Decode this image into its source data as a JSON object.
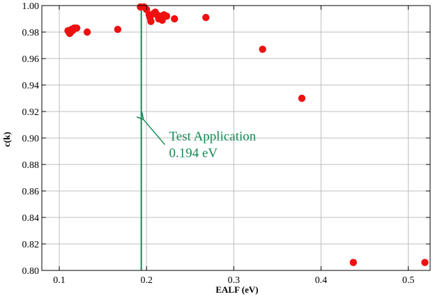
{
  "chart_data": {
    "type": "scatter",
    "title": "",
    "xlabel": "EALF (eV)",
    "ylabel": "c(k)",
    "xlim": [
      0.08,
      0.525
    ],
    "ylim": [
      0.8,
      1.0
    ],
    "x_ticks": [
      0.1,
      0.2,
      0.3,
      0.4,
      0.5
    ],
    "x_tick_labels": [
      "0.1",
      "0.2",
      "0.3",
      "0.4",
      "0.5"
    ],
    "y_ticks": [
      0.8,
      0.82,
      0.84,
      0.86,
      0.88,
      0.9,
      0.92,
      0.94,
      0.96,
      0.98,
      1.0
    ],
    "y_tick_labels": [
      "0.80",
      "0.82",
      "0.84",
      "0.86",
      "0.88",
      "0.90",
      "0.92",
      "0.94",
      "0.96",
      "0.98",
      "1.00"
    ],
    "grid": {
      "horizontal": true,
      "vertical": true
    },
    "series": [
      {
        "color": "#ee1111",
        "points": [
          [
            0.11,
            0.981
          ],
          [
            0.111,
            0.98
          ],
          [
            0.112,
            0.979
          ],
          [
            0.113,
            0.98
          ],
          [
            0.114,
            0.982
          ],
          [
            0.115,
            0.981
          ],
          [
            0.116,
            0.982
          ],
          [
            0.117,
            0.983
          ],
          [
            0.118,
            0.983
          ],
          [
            0.12,
            0.983
          ],
          [
            0.132,
            0.98
          ],
          [
            0.167,
            0.982
          ],
          [
            0.193,
            0.999
          ],
          [
            0.197,
            0.999
          ],
          [
            0.2,
            0.997
          ],
          [
            0.203,
            0.993
          ],
          [
            0.204,
            0.991
          ],
          [
            0.205,
            0.988
          ],
          [
            0.208,
            0.994
          ],
          [
            0.21,
            0.995
          ],
          [
            0.212,
            0.993
          ],
          [
            0.214,
            0.99
          ],
          [
            0.216,
            0.992
          ],
          [
            0.218,
            0.989
          ],
          [
            0.22,
            0.993
          ],
          [
            0.223,
            0.992
          ],
          [
            0.232,
            0.99
          ],
          [
            0.268,
            0.991
          ],
          [
            0.333,
            0.967
          ],
          [
            0.378,
            0.93
          ],
          [
            0.437,
            0.806
          ],
          [
            0.519,
            0.806
          ]
        ]
      }
    ],
    "reference_line": {
      "x": 0.194,
      "color": "#138a55"
    },
    "annotation": {
      "lines": [
        "Test Application",
        "0.194 eV"
      ],
      "color": "#138a55",
      "arrow_to": {
        "x": 0.194,
        "y": 0.914
      },
      "arrow_from": {
        "x": 0.221,
        "y": 0.895
      }
    }
  }
}
